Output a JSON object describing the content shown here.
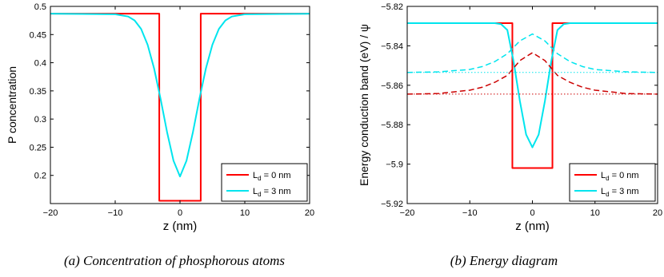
{
  "captions": {
    "left": "(a) Concentration of phosphorous atoms",
    "right": "(b) Energy diagram"
  },
  "chart_data": [
    {
      "type": "line",
      "xlabel": "z (nm)",
      "ylabel": "P concentration",
      "xlim": [
        -20,
        20
      ],
      "ylim": [
        0.15,
        0.5
      ],
      "xticks": [
        -20,
        -10,
        0,
        10,
        20
      ],
      "xtick_labels": [
        "−20",
        "−10",
        "0",
        "10",
        "20"
      ],
      "yticks": [
        0.2,
        0.25,
        0.3,
        0.35,
        0.4,
        0.45,
        0.5
      ],
      "ytick_labels": [
        "0.2",
        "0.25",
        "0.3",
        "0.35",
        "0.4",
        "0.45",
        "0.5"
      ],
      "grid": false,
      "legend_position": "bottom-right",
      "legend": [
        {
          "label": "L",
          "sub": "d",
          "suffix": " = 0 nm",
          "color": "#ff0000"
        },
        {
          "label": "L",
          "sub": "d",
          "suffix": " = 3 nm",
          "color": "#00e5ee"
        }
      ],
      "series": [
        {
          "color": "#ff0000",
          "dash": "solid",
          "width": 2,
          "x": [
            -20,
            -3.2,
            -3.2,
            3.2,
            3.2,
            20
          ],
          "y": [
            0.487,
            0.487,
            0.155,
            0.155,
            0.487,
            0.487
          ]
        },
        {
          "color": "#00e5ee",
          "dash": "solid",
          "width": 2,
          "x": [
            -20,
            -10,
            -8,
            -7,
            -6,
            -5,
            -4,
            -3,
            -2,
            -1,
            0,
            1,
            2,
            3,
            4,
            5,
            6,
            7,
            8,
            10,
            20
          ],
          "y": [
            0.487,
            0.486,
            0.482,
            0.475,
            0.46,
            0.432,
            0.39,
            0.336,
            0.277,
            0.226,
            0.198,
            0.226,
            0.277,
            0.336,
            0.39,
            0.432,
            0.46,
            0.475,
            0.482,
            0.486,
            0.487
          ]
        }
      ]
    },
    {
      "type": "line",
      "xlabel": "z (nm)",
      "ylabel": "Energy conduction band (eV) / ψ",
      "xlim": [
        -20,
        20
      ],
      "ylim": [
        -5.92,
        -5.82
      ],
      "xticks": [
        -20,
        -10,
        0,
        10,
        20
      ],
      "xtick_labels": [
        "−20",
        "−10",
        "0",
        "10",
        "20"
      ],
      "yticks": [
        -5.92,
        -5.9,
        -5.88,
        -5.86,
        -5.84,
        -5.82
      ],
      "ytick_labels": [
        "−5.92",
        "−5.9",
        "−5.88",
        "−5.86",
        "−5.84",
        "−5.82"
      ],
      "grid": false,
      "legend_position": "bottom-right",
      "legend": [
        {
          "label": "L",
          "sub": "d",
          "suffix": " = 0 nm",
          "color": "#ff0000"
        },
        {
          "label": "L",
          "sub": "d",
          "suffix": " = 3 nm",
          "color": "#00e5ee"
        }
      ],
      "series": [
        {
          "color": "#ff0000",
          "dash": "solid",
          "width": 2,
          "x": [
            -20,
            -3.2,
            -3.2,
            3.2,
            3.2,
            20
          ],
          "y": [
            -5.8285,
            -5.8285,
            -5.902,
            -5.902,
            -5.8285,
            -5.8285
          ]
        },
        {
          "color": "#00e5ee",
          "dash": "solid",
          "width": 2,
          "x": [
            -20,
            -6,
            -5,
            -4,
            -3,
            -2,
            -1,
            0,
            1,
            2,
            3,
            4,
            5,
            6,
            20
          ],
          "y": [
            -5.8285,
            -5.8285,
            -5.829,
            -5.832,
            -5.848,
            -5.868,
            -5.885,
            -5.8915,
            -5.885,
            -5.868,
            -5.848,
            -5.832,
            -5.829,
            -5.8285,
            -5.8285
          ]
        },
        {
          "color": "#00e5ee",
          "dash": "dashed",
          "width": 1.5,
          "x": [
            -20,
            -15,
            -10,
            -8,
            -6,
            -4,
            -2,
            0,
            2,
            4,
            6,
            8,
            10,
            15,
            20
          ],
          "y": [
            -5.8535,
            -5.8532,
            -5.852,
            -5.8505,
            -5.848,
            -5.844,
            -5.8375,
            -5.834,
            -5.8375,
            -5.844,
            -5.848,
            -5.8505,
            -5.852,
            -5.8532,
            -5.8535
          ]
        },
        {
          "color": "#cc0000",
          "dash": "dashed",
          "width": 1.5,
          "x": [
            -20,
            -15,
            -10,
            -8,
            -6,
            -4,
            -2,
            0,
            2,
            4,
            6,
            8,
            10,
            15,
            20
          ],
          "y": [
            -5.8645,
            -5.8642,
            -5.8625,
            -5.861,
            -5.8585,
            -5.855,
            -5.8475,
            -5.8435,
            -5.8475,
            -5.855,
            -5.8585,
            -5.861,
            -5.8625,
            -5.8642,
            -5.8645
          ]
        },
        {
          "color": "#00e5ee",
          "dash": "dotted",
          "width": 1,
          "x": [
            -20,
            20
          ],
          "y": [
            -5.8535,
            -5.8535
          ]
        },
        {
          "color": "#cc0000",
          "dash": "dotted",
          "width": 1,
          "x": [
            -20,
            20
          ],
          "y": [
            -5.8645,
            -5.8645
          ]
        }
      ]
    }
  ]
}
